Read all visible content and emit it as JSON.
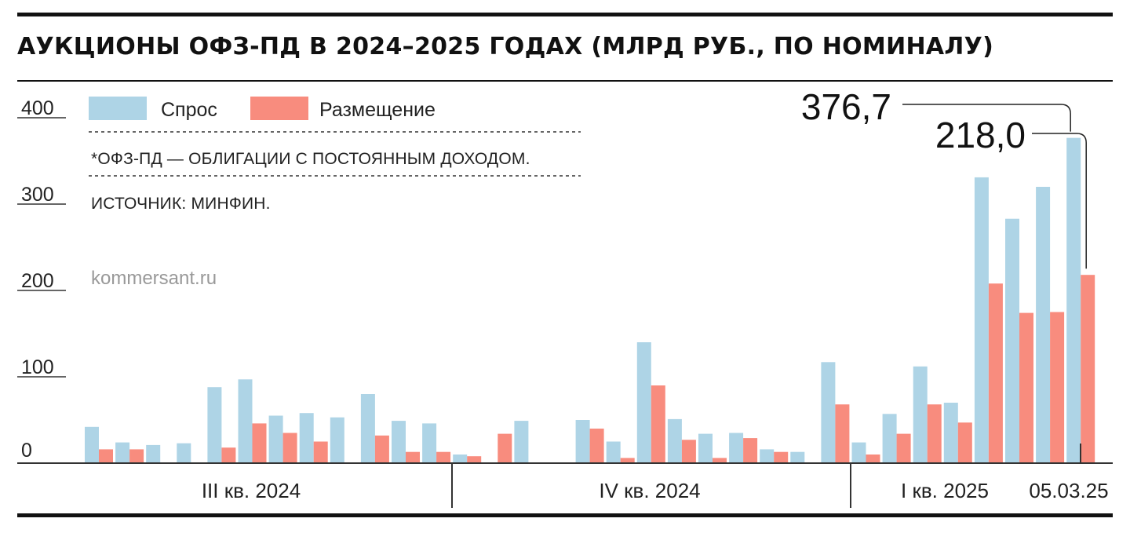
{
  "title": "АУКЦИОНЫ ОФЗ-ПД В 2024–2025 ГОДАХ (МЛРД РУБ., ПО НОМИНАЛУ)",
  "note": "*ОФЗ-ПД — ОБЛИГАЦИИ С ПОСТОЯННЫМ ДОХОДОМ.",
  "source": "ИСТОЧНИК: МИНФИН.",
  "site": "kommersant.ru",
  "colors": {
    "demand": "#aed4e6",
    "placement": "#f88c7e",
    "text": "#222222"
  },
  "chart_data": {
    "type": "bar",
    "title": "АУКЦИОНЫ ОФЗ-ПД В 2024–2025 ГОДАХ (МЛРД РУБ., ПО НОМИНАЛУ)",
    "xlabel": "",
    "ylabel": "",
    "ylim": [
      0,
      420
    ],
    "yticks": [
      0,
      100,
      200,
      300,
      400
    ],
    "grid": false,
    "legend_position": "top-left",
    "series": [
      {
        "name": "Спрос",
        "values": [
          42,
          24,
          21,
          23,
          88,
          97,
          55,
          58,
          53,
          80,
          49,
          46,
          10,
          0,
          49,
          0,
          50,
          25,
          140,
          51,
          34,
          35,
          16,
          13,
          117,
          24,
          57,
          112,
          70,
          331,
          283,
          320,
          376.7
        ]
      },
      {
        "name": "Размещение",
        "values": [
          16,
          16,
          0,
          0,
          18,
          46,
          35,
          25,
          0,
          32,
          13,
          13,
          8,
          34,
          0,
          0,
          40,
          6,
          90,
          27,
          6,
          29,
          13,
          0,
          68,
          10,
          34,
          68,
          47,
          208,
          174,
          175,
          218.0
        ]
      }
    ],
    "annotations": [
      {
        "label": "376,7",
        "series": "Спрос",
        "index": 32
      },
      {
        "label": "218,0",
        "series": "Размещение",
        "index": 32
      }
    ],
    "periods": [
      {
        "label": "III кв. 2024",
        "start_index": 0,
        "end_index": 12
      },
      {
        "label": "IV кв. 2024",
        "start_index": 13,
        "end_index": 25
      },
      {
        "label": "I кв. 2025",
        "start_index": 26,
        "end_index": 31
      }
    ],
    "last_date_label": "05.03.25"
  }
}
